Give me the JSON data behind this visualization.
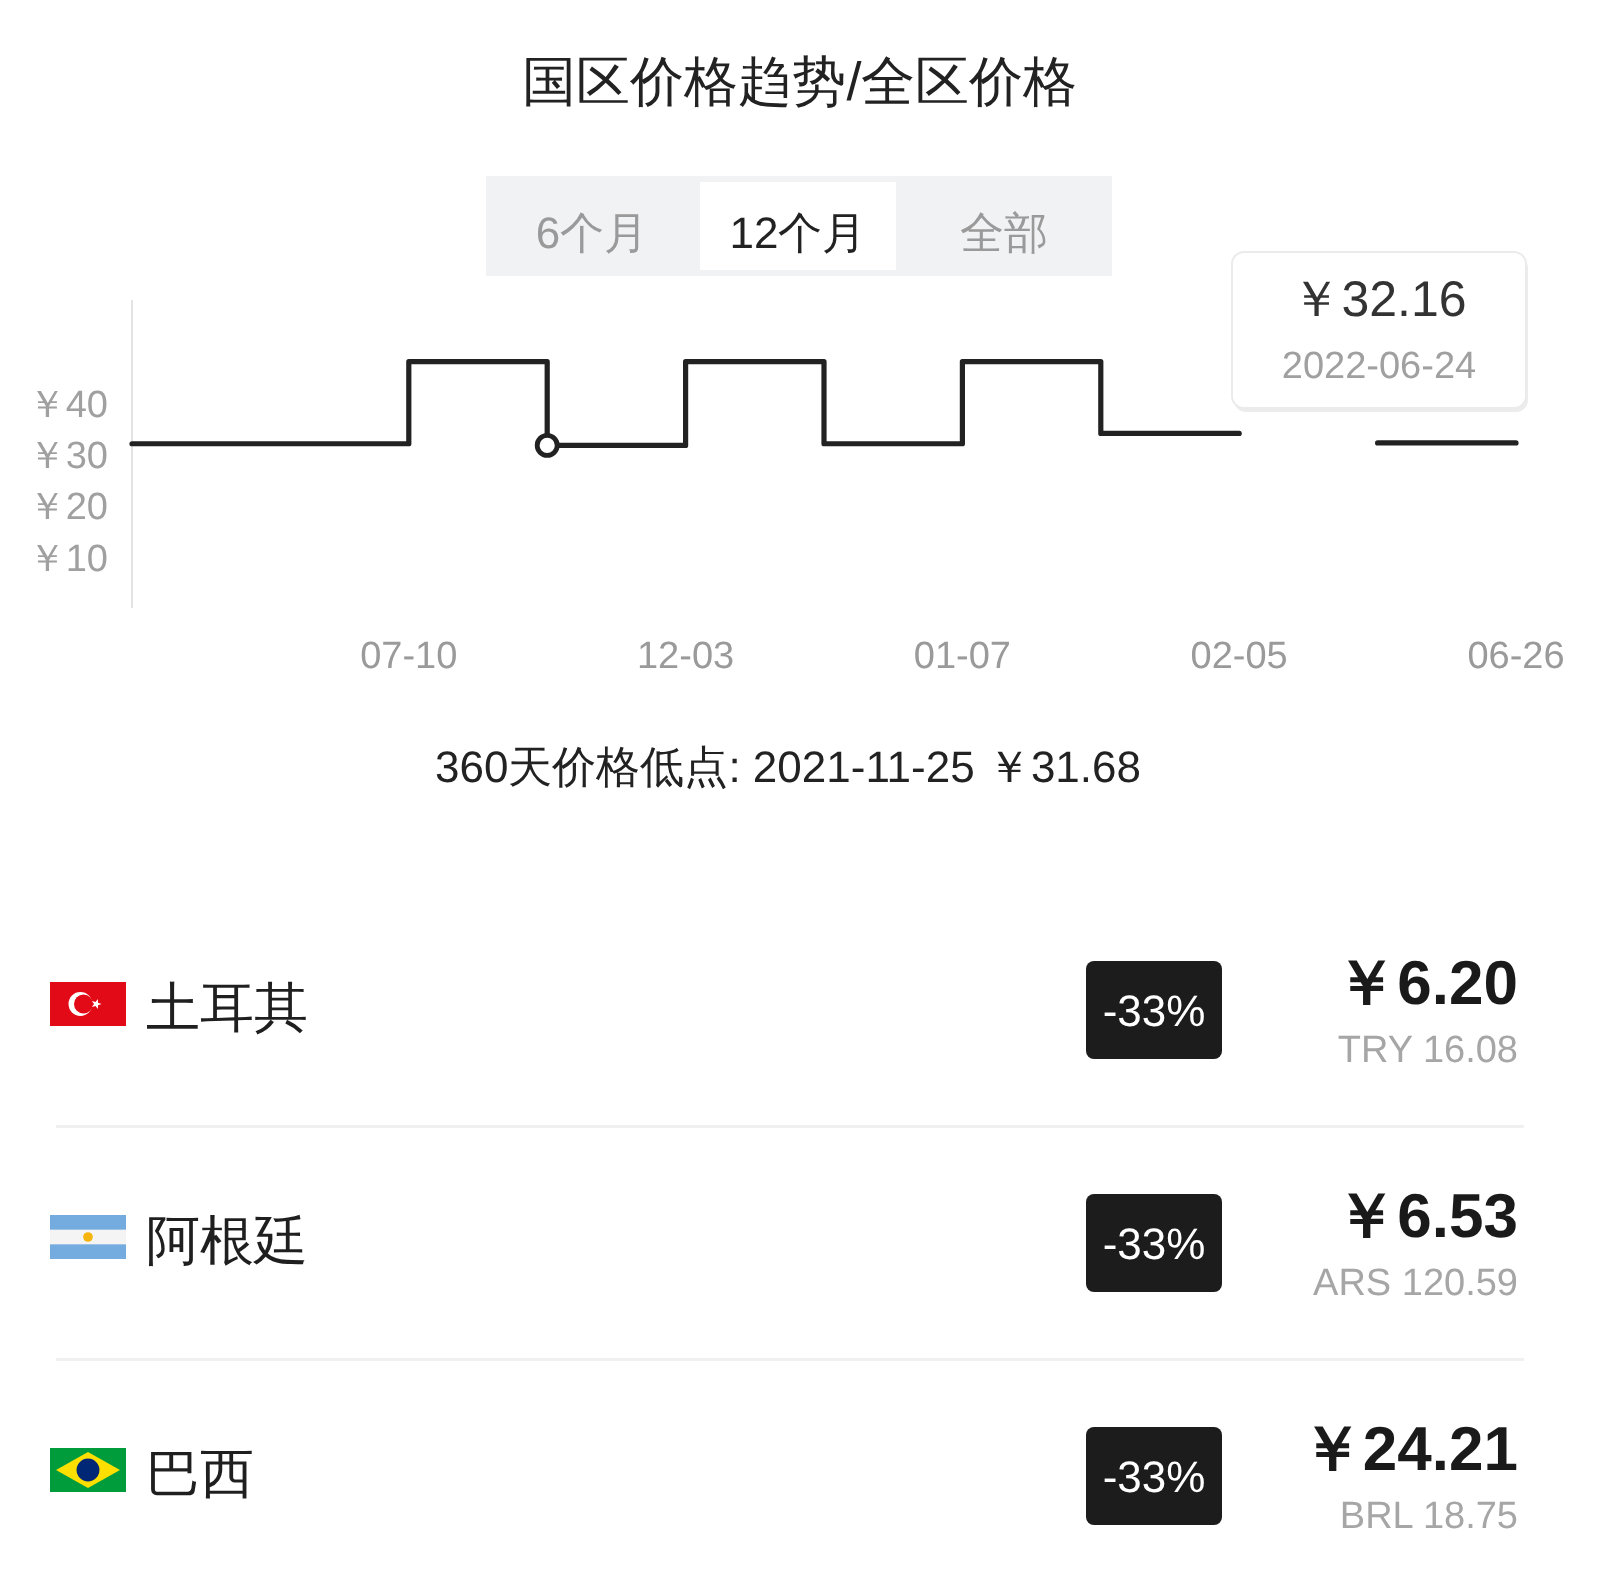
{
  "chart_data": [
    {
      "type": "step",
      "title": "国区价格趋势/全区价格",
      "categories": [
        null,
        null,
        "07-10",
        null,
        "12-03",
        null,
        "01-07",
        null,
        "02-05",
        null,
        "06-26"
      ],
      "series": [
        {
          "type": "step",
          "color": "#222222",
          "values": [
            32,
            32,
            48,
            31.68,
            48,
            32,
            48,
            34,
            null,
            32.16,
            32.16
          ]
        },
        {
          "type": "scatter",
          "color": "#222222",
          "marker": "circle",
          "values": [
            null,
            null,
            null,
            31.68,
            null,
            null,
            null,
            null,
            null,
            null,
            null
          ]
        }
      ],
      "ylim": [
        0,
        60
      ],
      "yticks": [
        {
          "value": 10,
          "label": "￥10"
        },
        {
          "value": 20,
          "label": "￥20"
        },
        {
          "value": 30,
          "label": "￥30"
        },
        {
          "value": 40,
          "label": "￥40"
        }
      ],
      "annotations": [
        "6个月",
        "12个月",
        "全部",
        "￥32.16",
        "2022-06-24",
        "360天价格低点: 2021-11-25 ￥31.68"
      ]
    },
    {
      "type": "other",
      "categories": [
        "土耳其",
        "阿根廷",
        "巴西"
      ],
      "annotations": [
        "-33%",
        "￥6.20",
        "TRY 16.08",
        "-33%",
        "￥6.53",
        "ARS 120.59",
        "-33%",
        "￥24.21",
        "BRL 18.75"
      ]
    }
  ]
}
